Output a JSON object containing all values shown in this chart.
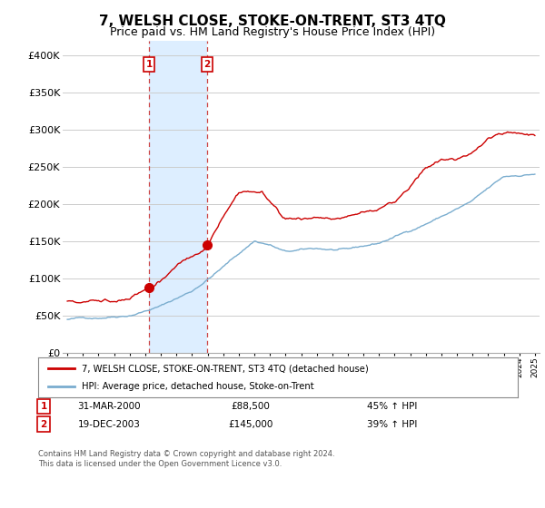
{
  "title": "7, WELSH CLOSE, STOKE-ON-TRENT, ST3 4TQ",
  "subtitle": "Price paid vs. HM Land Registry's House Price Index (HPI)",
  "title_fontsize": 11,
  "subtitle_fontsize": 9,
  "ylim": [
    0,
    420000
  ],
  "yticks": [
    0,
    50000,
    100000,
    150000,
    200000,
    250000,
    300000,
    350000,
    400000
  ],
  "xlim_start": 1994.7,
  "xlim_end": 2025.3,
  "background_color": "#ffffff",
  "grid_color": "#cccccc",
  "sale1_x": 2000.25,
  "sale1_y": 88500,
  "sale2_x": 2003.97,
  "sale2_y": 145000,
  "sale1_label": "31-MAR-2000",
  "sale1_price": "£88,500",
  "sale1_hpi": "45% ↑ HPI",
  "sale2_label": "19-DEC-2003",
  "sale2_price": "£145,000",
  "sale2_hpi": "39% ↑ HPI",
  "legend_line1": "7, WELSH CLOSE, STOKE-ON-TRENT, ST3 4TQ (detached house)",
  "legend_line2": "HPI: Average price, detached house, Stoke-on-Trent",
  "footer_line1": "Contains HM Land Registry data © Crown copyright and database right 2024.",
  "footer_line2": "This data is licensed under the Open Government Licence v3.0.",
  "red_color": "#cc0000",
  "blue_color": "#7aadcf",
  "highlight_bg": "#ddeeff",
  "dashed_red": "#cc4444"
}
